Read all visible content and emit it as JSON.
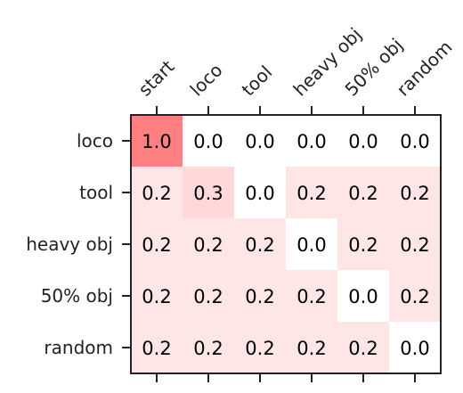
{
  "chart_data": {
    "type": "heatmap",
    "title": "",
    "xlabel": "",
    "ylabel": "",
    "x_categories": [
      "start",
      "loco",
      "tool",
      "heavy obj",
      "50% obj",
      "random"
    ],
    "y_categories": [
      "loco",
      "tool",
      "heavy obj",
      "50% obj",
      "random"
    ],
    "values": [
      [
        1.0,
        0.0,
        0.0,
        0.0,
        0.0,
        0.0
      ],
      [
        0.2,
        0.3,
        0.0,
        0.2,
        0.2,
        0.2
      ],
      [
        0.2,
        0.2,
        0.2,
        0.0,
        0.2,
        0.2
      ],
      [
        0.2,
        0.2,
        0.2,
        0.2,
        0.0,
        0.2
      ],
      [
        0.2,
        0.2,
        0.2,
        0.2,
        0.2,
        0.0
      ]
    ],
    "value_labels": [
      [
        "1.0",
        "0.0",
        "0.0",
        "0.0",
        "0.0",
        "0.0"
      ],
      [
        "0.2",
        "0.3",
        "0.0",
        "0.2",
        "0.2",
        "0.2"
      ],
      [
        "0.2",
        "0.2",
        "0.2",
        "0.0",
        "0.2",
        "0.2"
      ],
      [
        "0.2",
        "0.2",
        "0.2",
        "0.2",
        "0.0",
        "0.2"
      ],
      [
        "0.2",
        "0.2",
        "0.2",
        "0.2",
        "0.2",
        "0.0"
      ]
    ],
    "color_range": [
      0.0,
      1.0
    ],
    "color_low": "#ffffff",
    "color_high": "#ff8080",
    "x_tick_position": "top",
    "grid": false,
    "legend": "none"
  }
}
